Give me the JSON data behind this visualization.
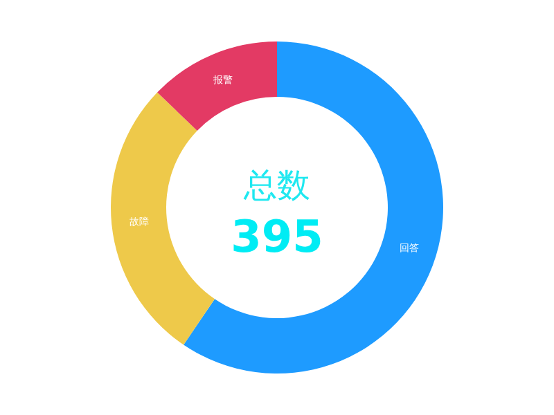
{
  "chart_data": {
    "type": "donut",
    "title": "总数",
    "subtitle": "395",
    "categories": [
      "回答",
      "故障",
      "报警"
    ],
    "values": [
      59.5,
      27.7,
      12.8
    ],
    "colors": [
      "#1e9bff",
      "#eec94a",
      "#e33a64"
    ]
  }
}
